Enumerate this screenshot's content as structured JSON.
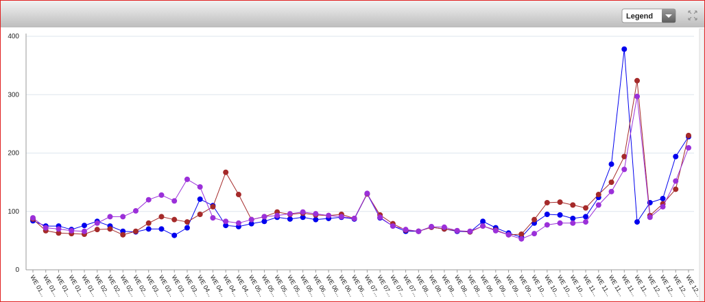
{
  "controls": {
    "legend": "Legend"
  },
  "chart_data": {
    "type": "line",
    "categories": [
      "WE 01...",
      "WE 01...",
      "WE 01...",
      "WE 01...",
      "WE 01...",
      "WE 02...",
      "WE 02...",
      "WE 02...",
      "WE 02...",
      "WE 03...",
      "WE 03...",
      "WE 03...",
      "WE 03...",
      "WE 04...",
      "WE 04...",
      "WE 04...",
      "WE 04...",
      "WE 05...",
      "WE 05...",
      "WE 05...",
      "WE 05...",
      "WE 05...",
      "WE 06...",
      "WE 06...",
      "WE 06...",
      "WE 06...",
      "WE 07...",
      "WE 07...",
      "WE 07...",
      "WE 07...",
      "WE 08...",
      "WE 08...",
      "WE 08...",
      "WE 08...",
      "WE 08...",
      "WE 09...",
      "WE 09...",
      "WE 09...",
      "WE 09...",
      "WE 10...",
      "WE 10...",
      "WE 10...",
      "WE 10...",
      "WE 11...",
      "WE 11...",
      "WE 11...",
      "WE 11...",
      "WE 11...",
      "WE 12...",
      "WE 12...",
      "WE 12...",
      "WE 12..."
    ],
    "series": [
      {
        "color": "#0000ee",
        "values": [
          84,
          75,
          75,
          69,
          76,
          83,
          75,
          66,
          65,
          70,
          70,
          59,
          72,
          121,
          110,
          76,
          74,
          79,
          83,
          90,
          87,
          90,
          86,
          88,
          90,
          87,
          130,
          89,
          75,
          66,
          66,
          73,
          70,
          66,
          65,
          83,
          72,
          63,
          56,
          80,
          95,
          94,
          88,
          91,
          124,
          181,
          378,
          82,
          115,
          122,
          194,
          228
        ]
      },
      {
        "color": "#a52a2a",
        "values": [
          87,
          67,
          63,
          62,
          61,
          69,
          70,
          60,
          66,
          80,
          91,
          86,
          82,
          95,
          108,
          167,
          129,
          86,
          91,
          99,
          95,
          97,
          94,
          93,
          95,
          88,
          130,
          94,
          79,
          68,
          66,
          73,
          70,
          67,
          65,
          75,
          68,
          60,
          61,
          86,
          115,
          116,
          111,
          106,
          129,
          150,
          194,
          324,
          93,
          113,
          138,
          230
        ]
      },
      {
        "color": "#9b30d9",
        "values": [
          89,
          72,
          70,
          67,
          66,
          80,
          91,
          91,
          101,
          120,
          128,
          118,
          155,
          142,
          89,
          83,
          80,
          86,
          91,
          93,
          96,
          99,
          96,
          93,
          91,
          88,
          131,
          90,
          75,
          69,
          66,
          74,
          73,
          67,
          66,
          75,
          67,
          60,
          53,
          62,
          77,
          80,
          80,
          82,
          111,
          134,
          172,
          297,
          90,
          108,
          152,
          209
        ]
      }
    ],
    "ylim": [
      0,
      400
    ],
    "yticks": [
      0,
      100,
      200,
      300,
      400
    ],
    "grid": true
  }
}
